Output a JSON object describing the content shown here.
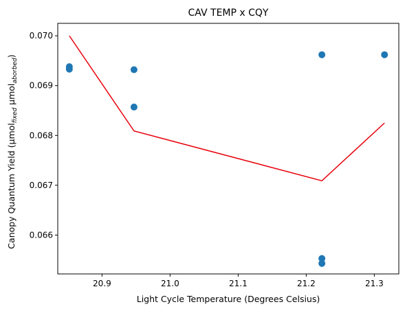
{
  "chart_data": {
    "type": "scatter",
    "title": "CAV TEMP x CQY",
    "xlabel": "Light Cycle Temperature (Degrees Celsius)",
    "ylabel": {
      "prefix": "Canopy Quantum Yield (μmol",
      "sub1": "fixed",
      "mid": " μmol",
      "sub2": "aborbed",
      "suffix": ")"
    },
    "xlim": [
      20.835,
      21.336
    ],
    "ylim": [
      0.06522,
      0.07025
    ],
    "xticks": [
      20.9,
      21.0,
      21.1,
      21.2,
      21.3
    ],
    "xtick_labels": [
      "20.9",
      "21.0",
      "21.1",
      "21.2",
      "21.3"
    ],
    "yticks": [
      0.066,
      0.067,
      0.068,
      0.069,
      0.07
    ],
    "ytick_labels": [
      "0.066",
      "0.067",
      "0.068",
      "0.069",
      "0.070"
    ],
    "grid": false,
    "series": [
      {
        "kind": "scatter",
        "color": "#1f77b4",
        "points": [
          {
            "x": 20.852,
            "y": 0.06938
          },
          {
            "x": 20.852,
            "y": 0.06933
          },
          {
            "x": 20.947,
            "y": 0.06932
          },
          {
            "x": 20.947,
            "y": 0.06857
          },
          {
            "x": 21.223,
            "y": 0.06962
          },
          {
            "x": 21.223,
            "y": 0.06553
          },
          {
            "x": 21.223,
            "y": 0.06543
          },
          {
            "x": 21.315,
            "y": 0.06962
          }
        ]
      },
      {
        "kind": "line",
        "color": "#e8000b",
        "points": [
          {
            "x": 20.852,
            "y": 0.07
          },
          {
            "x": 20.947,
            "y": 0.06809
          },
          {
            "x": 21.223,
            "y": 0.06709
          },
          {
            "x": 21.315,
            "y": 0.06825
          }
        ]
      }
    ]
  }
}
